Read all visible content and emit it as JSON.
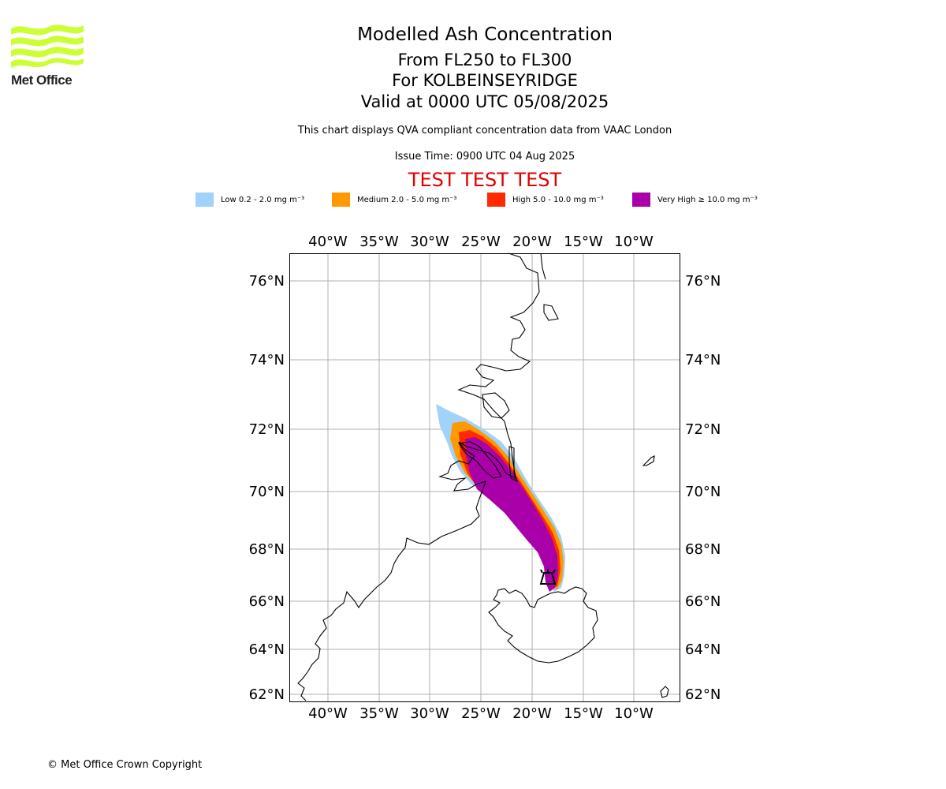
{
  "header": {
    "logo_text": "Met Office",
    "title": "Modelled Ash Concentration",
    "level_range": "From FL250 to FL300",
    "location": "For KOLBEINSEYRIDGE",
    "valid_time": "Valid at 0000 UTC 05/08/2025",
    "description": "This chart displays QVA compliant concentration data from VAAC London",
    "issue_time": "Issue Time: 0900 UTC 04 Aug 2025",
    "test_banner": "TEST TEST TEST"
  },
  "legend": [
    {
      "label": "Low 0.2 - 2.0 mg m⁻³",
      "color": "#a0d2fa"
    },
    {
      "label": "Medium 2.0 - 5.0 mg m⁻³",
      "color": "#ff9900"
    },
    {
      "label": "High 5.0 - 10.0 mg m⁻³",
      "color": "#ff2a00"
    },
    {
      "label": "Very High ≥ 10.0 mg m⁻³",
      "color": "#aa00aa"
    }
  ],
  "map": {
    "longitude_labels": [
      "40°W",
      "35°W",
      "30°W",
      "25°W",
      "20°W",
      "15°W",
      "10°W"
    ],
    "latitude_labels": [
      "76°N",
      "74°N",
      "72°N",
      "70°N",
      "68°N",
      "66°N",
      "64°N",
      "62°N"
    ],
    "volcano_marker": "volcano-icon"
  },
  "footer": {
    "copyright": "© Met Office Crown Copyright"
  }
}
